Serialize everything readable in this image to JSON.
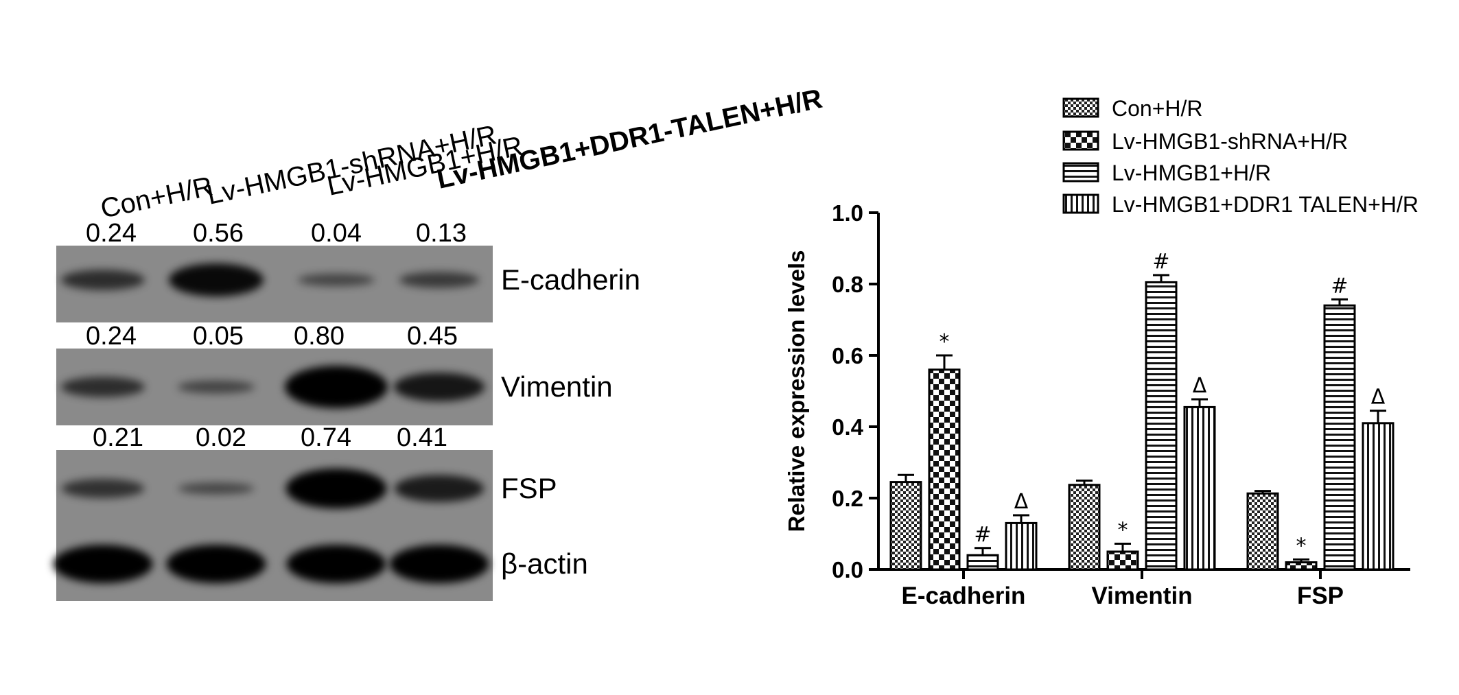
{
  "western_blot": {
    "lanes": [
      "Con+H/R",
      "Lv-HMGB1-shRNA+H/R",
      "Lv-HMGB1+H/R",
      "Lv-HMGB1+DDR1-TALEN+H/R"
    ],
    "rows": [
      {
        "protein": "E-cadherin",
        "values": [
          "0.24",
          "0.56",
          "0.04",
          "0.13"
        ],
        "intensity": [
          0.24,
          0.56,
          0.04,
          0.13
        ]
      },
      {
        "protein": "Vimentin",
        "values": [
          "0.24",
          "0.05",
          "0.80",
          "0.45"
        ],
        "intensity": [
          0.24,
          0.05,
          0.8,
          0.45
        ]
      },
      {
        "protein": "FSP",
        "values": [
          "0.21",
          "0.02",
          "0.74",
          "0.41"
        ],
        "intensity": [
          0.21,
          0.02,
          0.74,
          0.41
        ]
      },
      {
        "protein": "β-actin",
        "values": [],
        "intensity": [
          0.7,
          0.7,
          0.7,
          0.7
        ]
      }
    ]
  },
  "chart_data": {
    "type": "bar",
    "title": "",
    "xlabel": "",
    "ylabel": "Relative expression levels",
    "ylim": [
      0,
      1.0
    ],
    "yticks": [
      "0.0",
      "0.2",
      "0.4",
      "0.6",
      "0.8",
      "1.0"
    ],
    "grid": false,
    "legend_position": "top-right",
    "categories": [
      "E-cadherin",
      "Vimentin",
      "FSP"
    ],
    "series": [
      {
        "name": "Con+H/R",
        "pattern": "checker",
        "values": [
          0.245,
          0.237,
          0.213
        ],
        "errors": [
          0.02,
          0.012,
          0.007
        ],
        "marks": [
          "",
          "",
          ""
        ]
      },
      {
        "name": "Lv-HMGB1-shRNA+H/R",
        "pattern": "checker-large",
        "values": [
          0.56,
          0.05,
          0.02
        ],
        "errors": [
          0.04,
          0.022,
          0.008
        ],
        "marks": [
          "*",
          "*",
          "*"
        ]
      },
      {
        "name": "Lv-HMGB1+H/R",
        "pattern": "horizontal",
        "values": [
          0.04,
          0.805,
          0.74
        ],
        "errors": [
          0.02,
          0.02,
          0.017
        ],
        "marks": [
          "#",
          "#",
          "#"
        ]
      },
      {
        "name": "Lv-HMGB1+DDR1 TALEN+H/R",
        "pattern": "vertical",
        "values": [
          0.13,
          0.455,
          0.41
        ],
        "errors": [
          0.022,
          0.022,
          0.035
        ],
        "marks": [
          "Δ",
          "Δ",
          "Δ"
        ]
      }
    ]
  }
}
